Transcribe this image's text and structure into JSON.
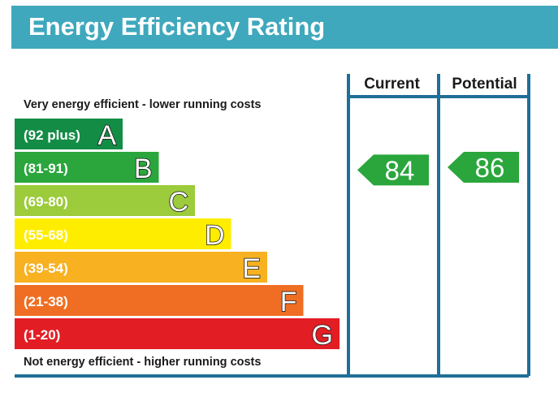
{
  "header": {
    "title": "Energy Efficiency Rating"
  },
  "chart_data": {
    "type": "bar",
    "title": "Energy Efficiency Rating",
    "top_note": "Very energy efficient - lower running costs",
    "bottom_note": "Not energy efficient - higher running costs",
    "columns": [
      "Current",
      "Potential"
    ],
    "bands": [
      {
        "letter": "A",
        "label": "(92 plus)",
        "min": 92,
        "max": 100,
        "color": "#138c45",
        "dark_text": false
      },
      {
        "letter": "B",
        "label": "(81-91)",
        "min": 81,
        "max": 91,
        "color": "#2aa63c",
        "dark_text": false
      },
      {
        "letter": "C",
        "label": "(69-80)",
        "min": 69,
        "max": 80,
        "color": "#9ccb3b",
        "dark_text": true
      },
      {
        "letter": "D",
        "label": "(55-68)",
        "min": 55,
        "max": 68,
        "color": "#ffed00",
        "dark_text": true
      },
      {
        "letter": "E",
        "label": "(39-54)",
        "min": 39,
        "max": 54,
        "color": "#f8b120",
        "dark_text": true
      },
      {
        "letter": "F",
        "label": "(21-38)",
        "min": 21,
        "max": 38,
        "color": "#ef6e23",
        "dark_text": true
      },
      {
        "letter": "G",
        "label": "(1-20)",
        "min": 1,
        "max": 20,
        "color": "#e31d24",
        "dark_text": false
      }
    ],
    "ratings": [
      {
        "column": "Current",
        "value": 84,
        "band": "B",
        "color": "#2aa63c"
      },
      {
        "column": "Potential",
        "value": 86,
        "band": "B",
        "color": "#2aa63c"
      }
    ],
    "frame_color": "#1f6f97"
  }
}
